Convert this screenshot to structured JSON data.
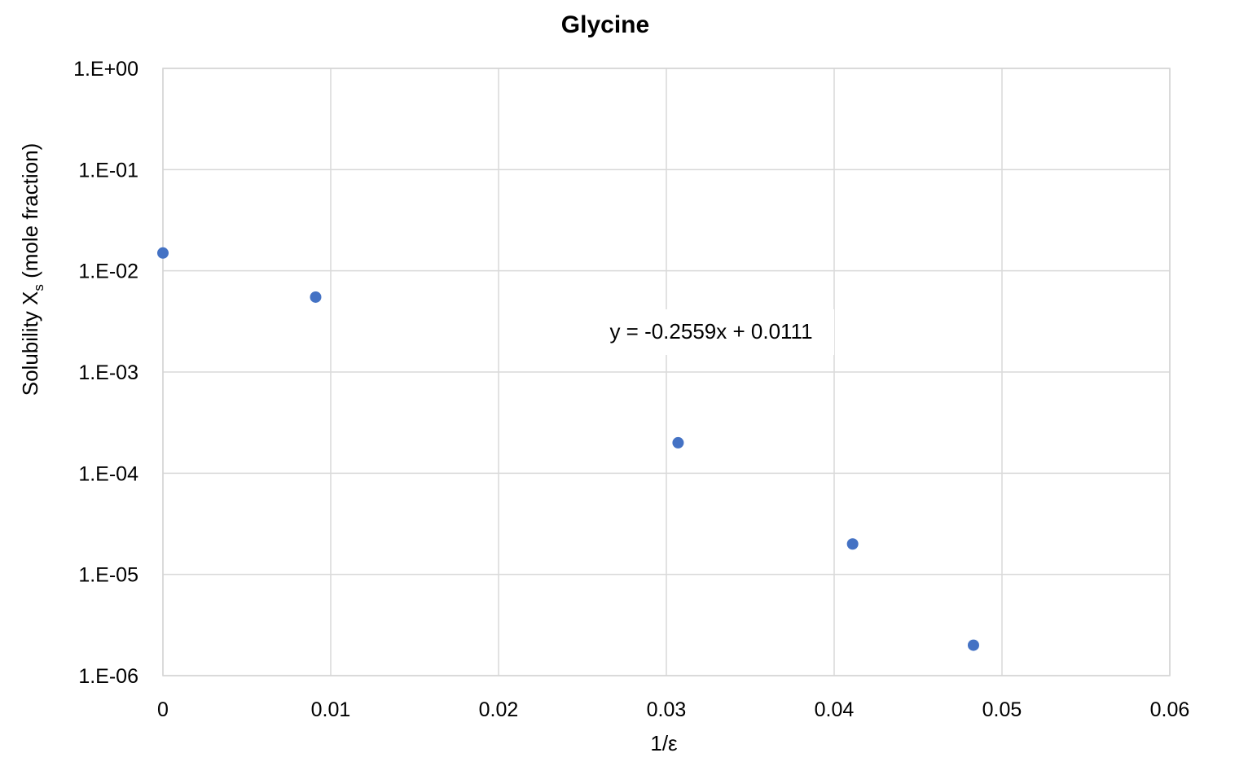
{
  "chart_data": {
    "type": "scatter",
    "title": "Glycine",
    "xlabel": "1/ε",
    "ylabel": "Solubility X",
    "ylabel_subscript": "s",
    "ylabel_suffix": " (mole fraction)",
    "x_ticks": [
      "0",
      "0.01",
      "0.02",
      "0.03",
      "0.04",
      "0.05",
      "0.06"
    ],
    "y_ticks": [
      "1.E-06",
      "1.E-05",
      "1.E-04",
      "1.E-03",
      "1.E-02",
      "1.E-01",
      "1.E+00"
    ],
    "xlim": [
      0,
      0.06
    ],
    "ylim": [
      1e-06,
      1
    ],
    "y_scale": "log",
    "grid": true,
    "legend": "none",
    "marker_color": "#4472C4",
    "annotation": "y = -0.2559x + 0.0111",
    "series": [
      {
        "x": [
          0,
          0.0091,
          0.0307,
          0.0411,
          0.0483
        ],
        "y": [
          0.015,
          0.0055,
          0.0002,
          2e-05,
          2e-06
        ]
      }
    ]
  }
}
